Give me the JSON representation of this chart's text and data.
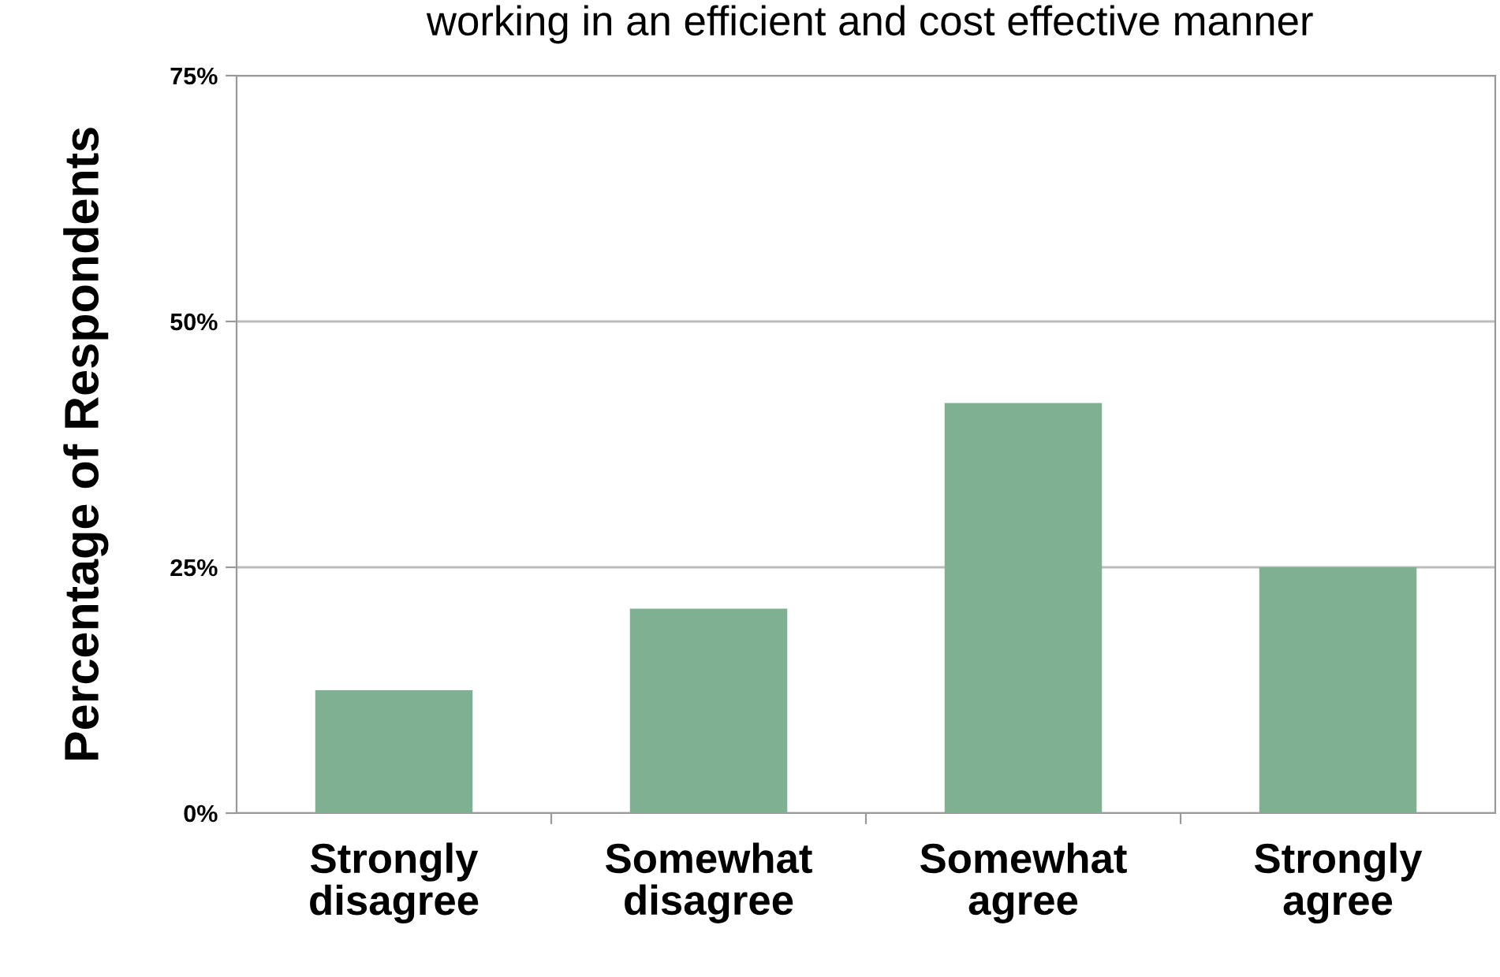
{
  "chart_data": {
    "type": "bar",
    "title": "working in an efficient and cost effective manner",
    "ylabel": "Percentage of Respondents",
    "categories": [
      "Strongly\ndisagree",
      "Somewhat\ndisagree",
      "Somewhat\nagree",
      "Strongly\nagree"
    ],
    "values": [
      12.5,
      20.8,
      41.7,
      25
    ],
    "color": "#80b092",
    "ylim": [
      0,
      75
    ],
    "yticks": [
      {
        "value": 0,
        "label": "0%"
      },
      {
        "value": 25,
        "label": "25%"
      },
      {
        "value": 50,
        "label": "50%"
      },
      {
        "value": 75,
        "label": "75%"
      }
    ],
    "grid": "y"
  }
}
